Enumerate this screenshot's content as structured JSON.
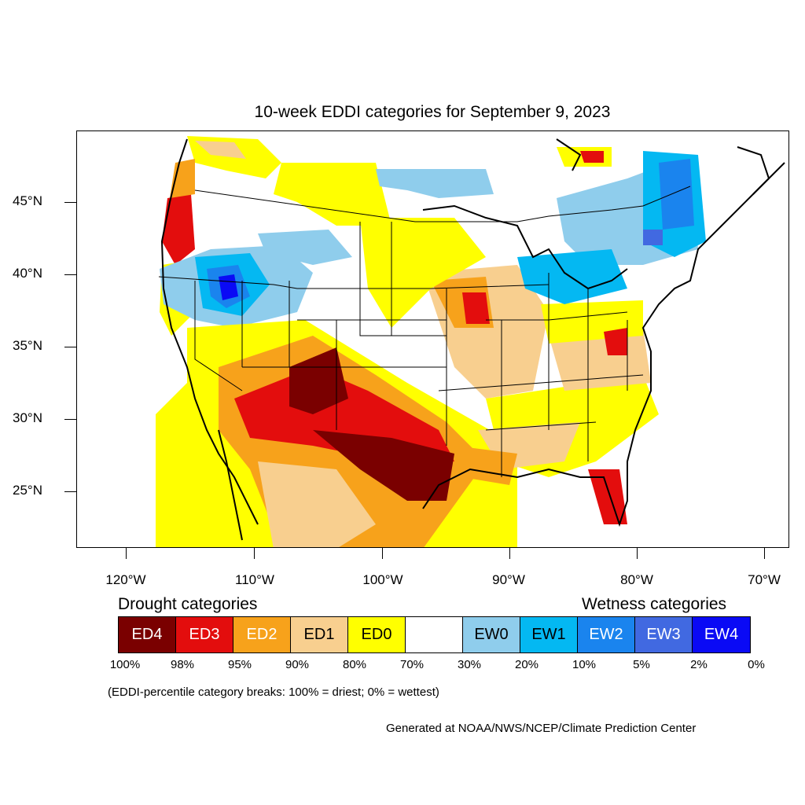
{
  "title": "10-week EDDI categories for September 9, 2023",
  "colors": {
    "ED4": "#7a0000",
    "ED3": "#e30d0d",
    "ED2": "#f7a21b",
    "ED1": "#f8cf8f",
    "ED0": "#ffff00",
    "none": "#ffffff",
    "EW0": "#8fcdec",
    "EW1": "#04b8f2",
    "EW2": "#1a84ee",
    "EW3": "#4169e1",
    "EW4": "#0a0af5"
  },
  "axes": {
    "lat_labels": [
      "45°N",
      "40°N",
      "35°N",
      "30°N",
      "25°N"
    ],
    "lon_labels": [
      "120°W",
      "110°W",
      "100°W",
      "90°W",
      "80°W",
      "70°W"
    ]
  },
  "legend": {
    "drought_heading": "Drought categories",
    "wetness_heading": "Wetness categories",
    "categories": [
      {
        "label": "ED4",
        "key": "ED4",
        "text_color": "#ffffff"
      },
      {
        "label": "ED3",
        "key": "ED3",
        "text_color": "#ffffff"
      },
      {
        "label": "ED2",
        "key": "ED2",
        "text_color": "#ffffff"
      },
      {
        "label": "ED1",
        "key": "ED1",
        "text_color": "#000000"
      },
      {
        "label": "ED0",
        "key": "ED0",
        "text_color": "#000000"
      },
      {
        "label": "",
        "key": "none",
        "text_color": "#000000"
      },
      {
        "label": "EW0",
        "key": "EW0",
        "text_color": "#000000"
      },
      {
        "label": "EW1",
        "key": "EW1",
        "text_color": "#000000"
      },
      {
        "label": "EW2",
        "key": "EW2",
        "text_color": "#ffffff"
      },
      {
        "label": "EW3",
        "key": "EW3",
        "text_color": "#ffffff"
      },
      {
        "label": "EW4",
        "key": "EW4",
        "text_color": "#ffffff"
      }
    ],
    "percent_breaks": [
      "100%",
      "98%",
      "95%",
      "90%",
      "80%",
      "70%",
      "30%",
      "20%",
      "10%",
      "5%",
      "2%",
      "0%"
    ]
  },
  "note": "(EDDI-percentile category breaks: 100% = driest; 0% = wettest)",
  "credit": "Generated at NOAA/NWS/NCEP/Climate Prediction Center"
}
